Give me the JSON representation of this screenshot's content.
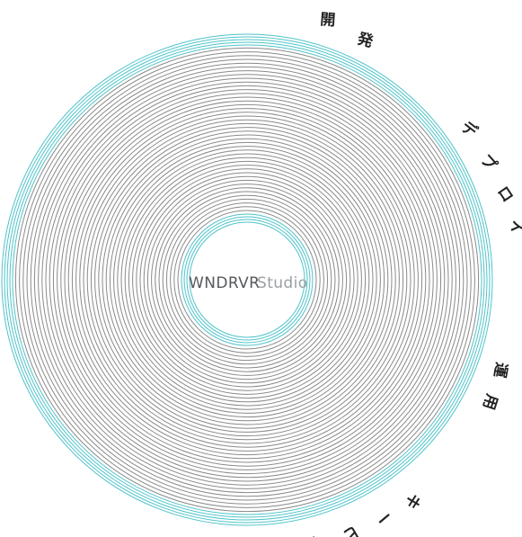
{
  "logo": {
    "wordmark": "WNDRVR",
    "studio": "Studio"
  },
  "arc_labels": [
    {
      "text": "開",
      "name": "arc-char-kai"
    },
    {
      "text": "発",
      "name": "arc-char-hatsu"
    },
    {
      "text": "デ",
      "name": "arc-char-de"
    },
    {
      "text": "プ",
      "name": "arc-char-pu"
    },
    {
      "text": "ロ",
      "name": "arc-char-ro"
    },
    {
      "text": "イ",
      "name": "arc-char-i"
    },
    {
      "text": "運",
      "name": "arc-char-un"
    },
    {
      "text": "用",
      "name": "arc-char-you"
    },
    {
      "text": "キ",
      "name": "arc-char-ki"
    },
    {
      "text": "ー",
      "name": "arc-char-chouon"
    },
    {
      "text": "ビ",
      "name": "arc-char-bi"
    },
    {
      "text": "メ",
      "name": "arc-char-me"
    }
  ],
  "colors": {
    "accent_teal": "#4ec3c9",
    "ring_gray": "#8a8a8a",
    "wordmark": "#55595c",
    "studio": "#9aa0a4",
    "glyph": "#222222"
  }
}
